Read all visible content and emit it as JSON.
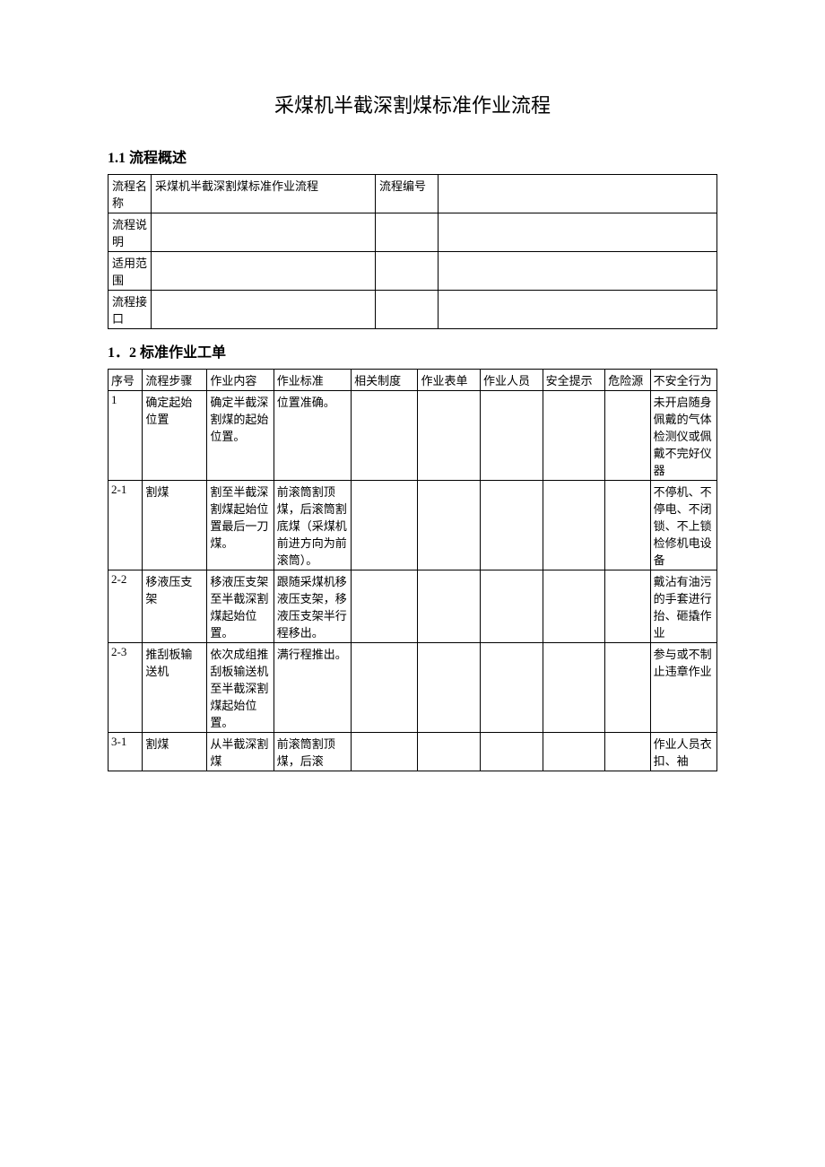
{
  "title": "采煤机半截深割煤标准作业流程",
  "section1": {
    "heading": "1.1 流程概述",
    "rows": [
      {
        "label": "流程名称",
        "val1": "采煤机半截深割煤标准作业流程",
        "label2": "流程编号",
        "val2": ""
      },
      {
        "label": "流程说明",
        "val1": "",
        "label2": "",
        "val2": ""
      },
      {
        "label": "适用范围",
        "val1": "",
        "label2": "",
        "val2": ""
      },
      {
        "label": "流程接口",
        "val1": "",
        "label2": "",
        "val2": ""
      }
    ]
  },
  "section2": {
    "heading": "1．2 标准作业工单",
    "headers": {
      "seq": "序号",
      "step": "流程步骤",
      "content": "作业内容",
      "standard": "作业标准",
      "system": "相关制度",
      "form": "作业表单",
      "person": "作业人员",
      "safety": "安全提示",
      "risk": "危险源",
      "unsafe": "不安全行为"
    },
    "rows": [
      {
        "seq": "1",
        "step": "确定起始位置",
        "content": "确定半截深割煤的起始位置。",
        "standard": "位置准确。",
        "system": "",
        "form": "",
        "person": "",
        "safety": "",
        "risk": "",
        "unsafe": "未开启随身佩戴的气体检测仪或佩戴不完好仪器"
      },
      {
        "seq": "2-1",
        "step": "割煤",
        "content": "割至半截深割煤起始位置最后一刀煤。",
        "standard": "前滚筒割顶煤，后滚筒割底煤（采煤机前进方向为前滚筒）。",
        "system": "",
        "form": "",
        "person": "",
        "safety": "",
        "risk": "",
        "unsafe": "不停机、不停电、不闭锁、不上锁检修机电设备"
      },
      {
        "seq": "2-2",
        "step": "移液压支架",
        "content": "移液压支架至半截深割煤起始位置。",
        "standard": "跟随采煤机移液压支架，移液压支架半行程移出。",
        "system": "",
        "form": "",
        "person": "",
        "safety": "",
        "risk": "",
        "unsafe": "戴沾有油污的手套进行抬、砸撬作业"
      },
      {
        "seq": "2-3",
        "step": "推刮板输送机",
        "content": "依次成组推刮板输送机至半截深割煤起始位置。",
        "standard": "满行程推出。",
        "system": "",
        "form": "",
        "person": "",
        "safety": "",
        "risk": "",
        "unsafe": "参与或不制止违章作业"
      },
      {
        "seq": "3-1",
        "step": "割煤",
        "content": "从半截深割煤",
        "standard": "前滚筒割顶煤，后滚",
        "system": "",
        "form": "",
        "person": "",
        "safety": "",
        "risk": "",
        "unsafe": "作业人员衣扣、袖"
      }
    ]
  },
  "colors": {
    "background": "#ffffff",
    "text": "#000000",
    "border": "#000000"
  },
  "fonts": {
    "body_size": 13,
    "title_size": 22,
    "section_size": 16,
    "family": "SimSun"
  }
}
